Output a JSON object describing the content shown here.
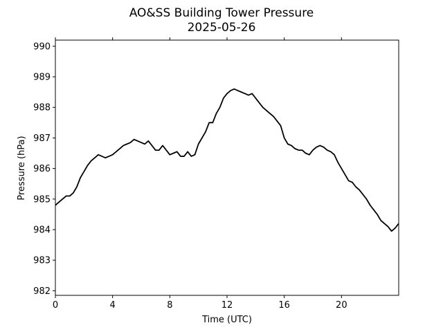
{
  "chart_data": {
    "type": "line",
    "title": "AO&SS Building Tower Pressure",
    "subtitle": "2025-05-26",
    "xlabel": "Time (UTC)",
    "ylabel": "Pressure (hPa)",
    "xlim": [
      0,
      24
    ],
    "ylim": [
      981.85,
      990.2
    ],
    "xticks": [
      0,
      4,
      8,
      12,
      16,
      20
    ],
    "yticks": [
      982,
      983,
      984,
      985,
      986,
      987,
      988,
      989,
      990
    ],
    "grid": false,
    "line_color": "#000000",
    "series": [
      {
        "x": [
          0,
          0.25,
          0.5,
          0.75,
          1.0,
          1.25,
          1.5,
          1.75,
          2.0,
          2.25,
          2.5,
          2.75,
          3.0,
          3.25,
          3.5,
          3.75,
          4.0,
          4.25,
          4.5,
          4.75,
          5.0,
          5.25,
          5.5,
          5.75,
          6.0,
          6.25,
          6.5,
          6.75,
          7.0,
          7.25,
          7.5,
          7.75,
          8.0,
          8.25,
          8.5,
          8.75,
          9.0,
          9.25,
          9.5,
          9.75,
          10.0,
          10.25,
          10.5,
          10.75,
          11.0,
          11.25,
          11.5,
          11.75,
          12.0,
          12.25,
          12.5,
          12.75,
          13.0,
          13.25,
          13.5,
          13.75,
          14.0,
          14.25,
          14.5,
          14.75,
          15.0,
          15.25,
          15.5,
          15.75,
          16.0,
          16.25,
          16.5,
          16.75,
          17.0,
          17.25,
          17.5,
          17.75,
          18.0,
          18.25,
          18.5,
          18.75,
          19.0,
          19.25,
          19.5,
          19.75,
          20.0,
          20.25,
          20.5,
          20.75,
          21.0,
          21.25,
          21.5,
          21.75,
          22.0,
          22.25,
          22.5,
          22.75,
          23.0,
          23.25,
          23.5,
          23.75,
          24.0
        ],
        "y": [
          984.8,
          984.9,
          985.0,
          985.1,
          985.1,
          985.2,
          985.4,
          985.7,
          985.9,
          986.1,
          986.25,
          986.35,
          986.45,
          986.4,
          986.35,
          986.4,
          986.45,
          986.55,
          986.65,
          986.75,
          986.8,
          986.85,
          986.95,
          986.9,
          986.85,
          986.8,
          986.9,
          986.75,
          986.6,
          986.6,
          986.75,
          986.6,
          986.45,
          986.5,
          986.55,
          986.4,
          986.4,
          986.55,
          986.4,
          986.45,
          986.8,
          987.0,
          987.2,
          987.5,
          987.5,
          987.8,
          988.0,
          988.3,
          988.45,
          988.55,
          988.6,
          988.55,
          988.5,
          988.45,
          988.4,
          988.45,
          988.3,
          988.15,
          988.0,
          987.9,
          987.8,
          987.7,
          987.55,
          987.4,
          987.0,
          986.8,
          986.75,
          986.65,
          986.6,
          986.6,
          986.5,
          986.45,
          986.6,
          986.7,
          986.75,
          986.7,
          986.6,
          986.55,
          986.45,
          986.2,
          986.0,
          985.8,
          985.6,
          985.55,
          985.4,
          985.3,
          985.15,
          985.0,
          984.8,
          984.65,
          984.5,
          984.3,
          984.2,
          984.1,
          983.95,
          984.05,
          984.2
        ]
      }
    ]
  }
}
